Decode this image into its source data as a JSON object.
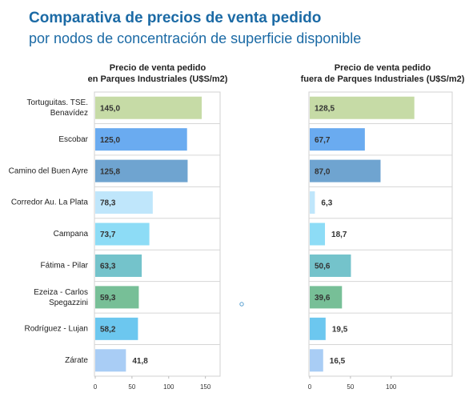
{
  "header": {
    "title": "Comparativa de precios de venta pedido",
    "subtitle": "por nodos de concentración de superficie disponible"
  },
  "chart_data": [
    {
      "type": "bar",
      "orientation": "horizontal",
      "title": [
        "Precio de venta pedido",
        "en Parques Industriales (U$S/m2)"
      ],
      "categories": [
        "Tortuguitas. TSE. Benavídez",
        "Escobar",
        "Camino del Buen Ayre",
        "Corredor Au. La Plata",
        "Campana",
        "Fátima - Pilar",
        "Ezeiza - Carlos Spegazzini",
        "Rodríguez - Lujan",
        "Zárate"
      ],
      "values": [
        145.0,
        125.0,
        125.8,
        78.3,
        73.7,
        63.3,
        59.3,
        58.2,
        41.8
      ],
      "value_labels": [
        "145,0",
        "125,0",
        "125,8",
        "78,3",
        "73,7",
        "63,3",
        "59,3",
        "58,2",
        "41,8"
      ],
      "colors": [
        "#c6dba6",
        "#6aabf0",
        "#6fa4d0",
        "#bfe6fb",
        "#8ddcf6",
        "#74c3cb",
        "#77bf97",
        "#6cc7ef",
        "#a9cdf5"
      ],
      "xlim": [
        0,
        170
      ],
      "xticks": [
        0,
        50,
        100,
        150
      ]
    },
    {
      "type": "bar",
      "orientation": "horizontal",
      "title": [
        "Precio de venta pedido",
        "fuera de Parques Industriales (U$S/m2)"
      ],
      "values": [
        128.5,
        67.7,
        87.0,
        6.3,
        18.7,
        50.6,
        39.6,
        19.5,
        16.5
      ],
      "value_labels": [
        "128,5",
        "67,7",
        "87,0",
        "6,3",
        "18,7",
        "50,6",
        "39,6",
        "19,5",
        "16,5"
      ],
      "colors": [
        "#c6dba6",
        "#6aabf0",
        "#6fa4d0",
        "#bfe6fb",
        "#8ddcf6",
        "#74c3cb",
        "#77bf97",
        "#6cc7ef",
        "#a9cdf5"
      ],
      "xlim": [
        0,
        175
      ],
      "xticks": [
        0,
        50,
        100
      ]
    }
  ]
}
